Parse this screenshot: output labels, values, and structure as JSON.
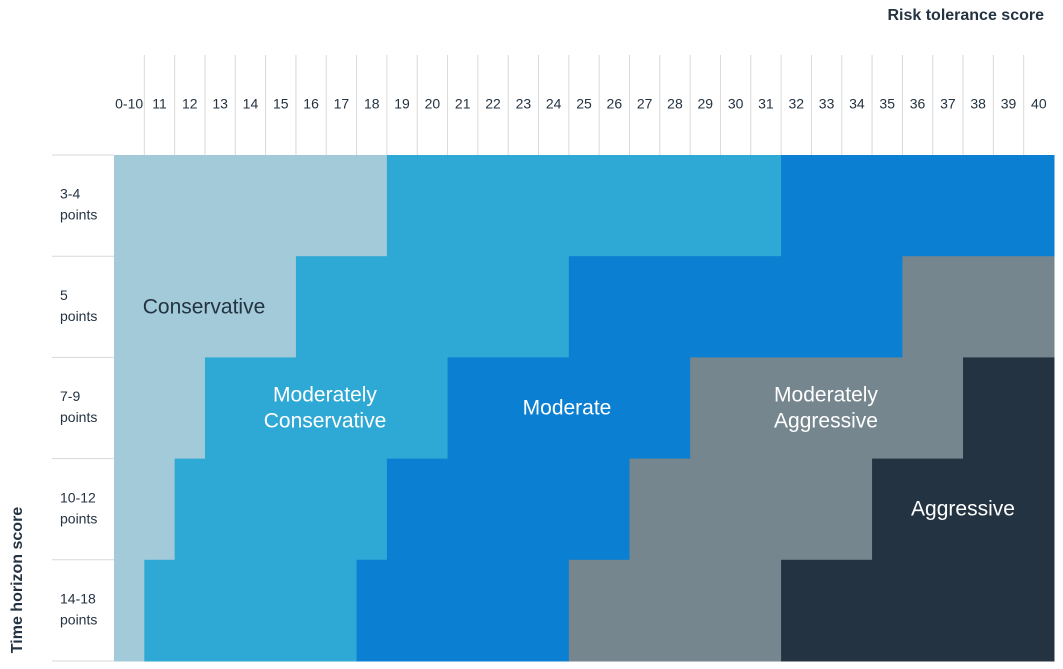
{
  "header": {
    "x_title": "Risk tolerance score",
    "y_title": "Time horizon score"
  },
  "columns": [
    "0-10",
    "11",
    "12",
    "13",
    "14",
    "15",
    "16",
    "17",
    "18",
    "19",
    "20",
    "21",
    "22",
    "23",
    "24",
    "25",
    "26",
    "27",
    "28",
    "29",
    "30",
    "31",
    "32",
    "33",
    "34",
    "35",
    "36",
    "37",
    "38",
    "39",
    "40"
  ],
  "profiles": [
    {
      "name": [
        "Conservative"
      ],
      "color": "#a2cad8",
      "text_color": "#243342"
    },
    {
      "name": [
        "Moderately",
        "Conservative"
      ],
      "color": "#2ea8d4",
      "text_color": "#ffffff"
    },
    {
      "name": [
        "Moderate"
      ],
      "color": "#0b7fd1",
      "text_color": "#ffffff"
    },
    {
      "name": [
        "Moderately",
        "Aggressive"
      ],
      "color": "#75868f",
      "text_color": "#ffffff"
    },
    {
      "name": [
        "Aggressive"
      ],
      "color": "#243342",
      "text_color": "#ffffff"
    }
  ],
  "rows": [
    {
      "label": [
        "3-4",
        "points"
      ],
      "segments": [
        {
          "profile": 0,
          "from": 0,
          "to": 8
        },
        {
          "profile": 1,
          "from": 9,
          "to": 21
        },
        {
          "profile": 2,
          "from": 22,
          "to": 30
        }
      ]
    },
    {
      "label": [
        "5",
        "points"
      ],
      "segments": [
        {
          "profile": 0,
          "from": 0,
          "to": 5
        },
        {
          "profile": 1,
          "from": 6,
          "to": 14
        },
        {
          "profile": 2,
          "from": 15,
          "to": 25
        },
        {
          "profile": 3,
          "from": 26,
          "to": 30
        }
      ]
    },
    {
      "label": [
        "7-9",
        "points"
      ],
      "segments": [
        {
          "profile": 0,
          "from": 0,
          "to": 2
        },
        {
          "profile": 1,
          "from": 3,
          "to": 10
        },
        {
          "profile": 2,
          "from": 11,
          "to": 18
        },
        {
          "profile": 3,
          "from": 19,
          "to": 27
        },
        {
          "profile": 4,
          "from": 28,
          "to": 30
        }
      ]
    },
    {
      "label": [
        "10-12",
        "points"
      ],
      "segments": [
        {
          "profile": 0,
          "from": 0,
          "to": 1
        },
        {
          "profile": 1,
          "from": 2,
          "to": 8
        },
        {
          "profile": 2,
          "from": 9,
          "to": 16
        },
        {
          "profile": 3,
          "from": 17,
          "to": 24
        },
        {
          "profile": 4,
          "from": 25,
          "to": 30
        }
      ]
    },
    {
      "label": [
        "14-18",
        "points"
      ],
      "segments": [
        {
          "profile": 0,
          "from": 0,
          "to": 0
        },
        {
          "profile": 1,
          "from": 1,
          "to": 7
        },
        {
          "profile": 2,
          "from": 8,
          "to": 14
        },
        {
          "profile": 3,
          "from": 15,
          "to": 21
        },
        {
          "profile": 4,
          "from": 22,
          "to": 30
        }
      ]
    }
  ]
}
